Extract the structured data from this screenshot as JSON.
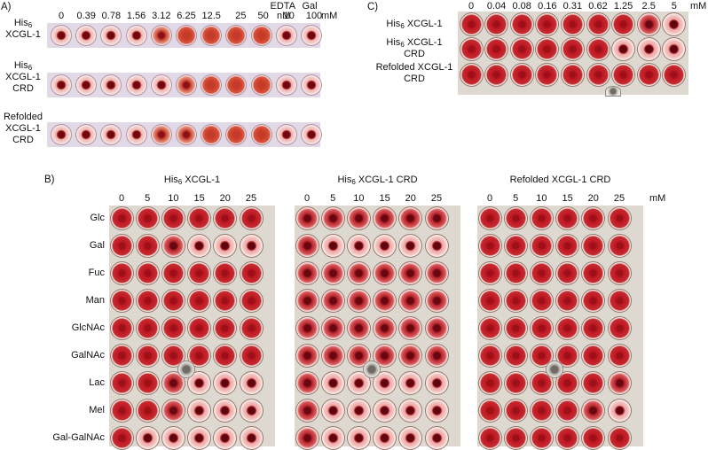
{
  "panel_a": {
    "letter": "A)",
    "concentration_ticks": [
      "0",
      "0.39",
      "0.78",
      "1.56",
      "3.12",
      "6.25",
      "12.5",
      "25",
      "50"
    ],
    "unit_nm": "nM",
    "controls": [
      {
        "header": "EDTA",
        "value": "10"
      },
      {
        "header": "Gal",
        "value": "100"
      }
    ],
    "unit_mm": "mM",
    "rows": [
      {
        "name_html": "His<sub>6</sub><br>XCGL-1",
        "name_lines": [
          "His6",
          "XCGL-1"
        ],
        "states": [
          "button",
          "button",
          "button",
          "button",
          "partial",
          "lattice",
          "lattice",
          "lattice",
          "lattice",
          "button",
          "button"
        ]
      },
      {
        "name_html": "His<sub>6</sub><br>XCGL-1<br>CRD",
        "name_lines": [
          "His6",
          "XCGL-1",
          "CRD"
        ],
        "states": [
          "button",
          "button",
          "button",
          "button",
          "button",
          "partial",
          "lattice",
          "lattice",
          "lattice",
          "button",
          "button"
        ]
      },
      {
        "name_html": "Refolded<br>XCGL-1<br>CRD",
        "name_lines": [
          "Refolded",
          "XCGL-1",
          "CRD"
        ],
        "states": [
          "button",
          "button",
          "button",
          "button",
          "partial",
          "partial",
          "lattice",
          "lattice",
          "lattice",
          "button",
          "button"
        ]
      }
    ]
  },
  "panel_b": {
    "letter": "B)",
    "unit": "mM",
    "concentration_ticks": [
      "0",
      "5",
      "10",
      "15",
      "20",
      "25"
    ],
    "sugars": [
      "Glc",
      "Gal",
      "Fuc",
      "Man",
      "GlcNAc",
      "GalNAc",
      "Lac",
      "Mel",
      "Gal-GalNAc"
    ],
    "plates": [
      {
        "title_html": "His<sub>6</sub> XCGL-1",
        "title": "His6 XCGL-1",
        "grid": [
          [
            "L",
            "L",
            "L",
            "L",
            "L",
            "L"
          ],
          [
            "L",
            "L",
            "P",
            "B",
            "B",
            "B"
          ],
          [
            "L",
            "L",
            "L",
            "L",
            "L",
            "L"
          ],
          [
            "L",
            "L",
            "L",
            "L",
            "L",
            "L"
          ],
          [
            "L",
            "L",
            "L",
            "L",
            "L",
            "L"
          ],
          [
            "L",
            "L",
            "L",
            "L",
            "L",
            "L"
          ],
          [
            "L",
            "L",
            "P",
            "B",
            "B",
            "B"
          ],
          [
            "L",
            "L",
            "P",
            "B",
            "B",
            "B"
          ],
          [
            "L",
            "B",
            "B",
            "B",
            "B",
            "B"
          ]
        ]
      },
      {
        "title_html": "His<sub>6</sub> XCGL-1 CRD",
        "title": "His6 XCGL-1 CRD",
        "grid": [
          [
            "P",
            "P",
            "P",
            "P",
            "P",
            "P"
          ],
          [
            "P",
            "B",
            "B",
            "B",
            "B",
            "B"
          ],
          [
            "P",
            "P",
            "P",
            "P",
            "P",
            "P"
          ],
          [
            "P",
            "P",
            "P",
            "P",
            "P",
            "P"
          ],
          [
            "P",
            "P",
            "P",
            "P",
            "P",
            "P"
          ],
          [
            "P",
            "P",
            "P",
            "P",
            "P",
            "P"
          ],
          [
            "P",
            "B",
            "B",
            "B",
            "B",
            "B"
          ],
          [
            "P",
            "B",
            "B",
            "B",
            "B",
            "B"
          ],
          [
            "P",
            "B",
            "B",
            "B",
            "B",
            "B"
          ]
        ]
      },
      {
        "title_html": "Refolded XCGL-1 CRD",
        "title": "Refolded XCGL-1 CRD",
        "grid": [
          [
            "L",
            "L",
            "L",
            "L",
            "L",
            "L"
          ],
          [
            "L",
            "L",
            "L",
            "L",
            "L",
            "L"
          ],
          [
            "L",
            "L",
            "L",
            "L",
            "L",
            "L"
          ],
          [
            "L",
            "L",
            "L",
            "L",
            "L",
            "L"
          ],
          [
            "L",
            "L",
            "L",
            "L",
            "L",
            "L"
          ],
          [
            "L",
            "L",
            "L",
            "L",
            "L",
            "L"
          ],
          [
            "L",
            "L",
            "L",
            "L",
            "L",
            "P"
          ],
          [
            "L",
            "L",
            "L",
            "L",
            "P",
            "B"
          ],
          [
            "L",
            "L",
            "L",
            "L",
            "L",
            "L"
          ]
        ]
      }
    ]
  },
  "panel_c": {
    "letter": "C)",
    "unit": "mM",
    "concentration_ticks": [
      "0",
      "0.04",
      "0.08",
      "0.16",
      "0.31",
      "0.62",
      "1.25",
      "2.5",
      "5"
    ],
    "rows": [
      {
        "name_html": "His<sub>6</sub> XCGL-1",
        "name": "His6 XCGL-1",
        "states": [
          "L",
          "L",
          "L",
          "L",
          "L",
          "L",
          "L",
          "P",
          "B"
        ]
      },
      {
        "name_html": "His<sub>6</sub> XCGL-1<br>CRD",
        "name": "His6 XCGL-1 CRD",
        "states": [
          "L",
          "L",
          "L",
          "L",
          "L",
          "L",
          "B",
          "B",
          "B"
        ]
      },
      {
        "name_html": "Refolded XCGL-1<br>CRD",
        "name": "Refolded XCGL-1 CRD",
        "states": [
          "L",
          "L",
          "L",
          "L",
          "L",
          "L",
          "L",
          "L",
          "L"
        ]
      }
    ]
  },
  "colors": {
    "strip_bg": "#e2d9e6",
    "plate_bg": "#ddd9d0",
    "lattice": "#b8141d",
    "button": "#6e0710",
    "halo": "#f1b4b2"
  }
}
